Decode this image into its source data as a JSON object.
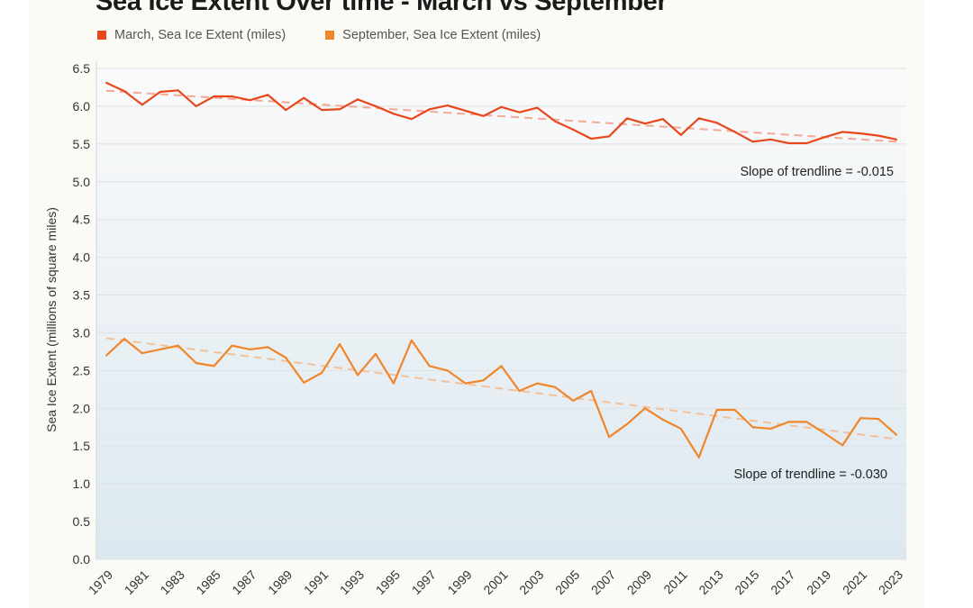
{
  "chart_data": {
    "type": "line",
    "title": "Sea Ice Extent Over time - March vs September",
    "ylabel": "Sea Ice Extent (millions of square miles)",
    "xlabel": "",
    "ylim": [
      0,
      6.5
    ],
    "yticks": [
      "0.0",
      "0.5",
      "1.0",
      "1.5",
      "2.0",
      "2.5",
      "3.0",
      "3.5",
      "4.0",
      "4.5",
      "5.0",
      "5.5",
      "6.0",
      "6.5"
    ],
    "xtick_labels": [
      "1979",
      "1981",
      "1983",
      "1985",
      "1987",
      "1989",
      "1991",
      "1993",
      "1995",
      "1997",
      "1999",
      "2001",
      "2003",
      "2005",
      "2007",
      "2009",
      "2011",
      "2013",
      "2015",
      "2017",
      "2019",
      "2021",
      "2023"
    ],
    "grid": true,
    "legend_placement": "top-left",
    "x": [
      1979,
      1980,
      1981,
      1982,
      1983,
      1984,
      1985,
      1986,
      1987,
      1988,
      1989,
      1990,
      1991,
      1992,
      1993,
      1994,
      1995,
      1996,
      1997,
      1998,
      1999,
      2000,
      2001,
      2002,
      2003,
      2004,
      2005,
      2006,
      2007,
      2008,
      2009,
      2010,
      2011,
      2012,
      2013,
      2014,
      2015,
      2016,
      2017,
      2018,
      2019,
      2020,
      2021,
      2022,
      2023
    ],
    "series": [
      {
        "name": "March, Sea Ice Extent (miles)",
        "color": "#e8471c",
        "values": [
          6.31,
          6.2,
          6.02,
          6.19,
          6.21,
          6.0,
          6.13,
          6.13,
          6.08,
          6.15,
          5.95,
          6.11,
          5.95,
          5.96,
          6.09,
          6.0,
          5.9,
          5.83,
          5.96,
          6.01,
          5.94,
          5.87,
          5.99,
          5.92,
          5.98,
          5.8,
          5.69,
          5.57,
          5.6,
          5.84,
          5.77,
          5.83,
          5.62,
          5.84,
          5.78,
          5.66,
          5.53,
          5.56,
          5.51,
          5.51,
          5.59,
          5.66,
          5.64,
          5.61,
          5.56
        ],
        "trend_color": "#f4a895",
        "annotation": "Slope of trendline = -0.015"
      },
      {
        "name": "September, Sea Ice Extent (miles)",
        "color": "#f0862a",
        "values": [
          2.7,
          2.92,
          2.73,
          2.78,
          2.83,
          2.6,
          2.56,
          2.83,
          2.78,
          2.81,
          2.67,
          2.34,
          2.47,
          2.85,
          2.44,
          2.72,
          2.33,
          2.9,
          2.56,
          2.5,
          2.33,
          2.37,
          2.56,
          2.23,
          2.33,
          2.28,
          2.1,
          2.23,
          1.62,
          1.79,
          2.0,
          1.85,
          1.73,
          1.35,
          1.98,
          1.98,
          1.75,
          1.73,
          1.82,
          1.82,
          1.67,
          1.51,
          1.87,
          1.86,
          1.65
        ],
        "trend_color": "#f3c199",
        "annotation": "Slope of trendline = -0.030"
      }
    ]
  }
}
